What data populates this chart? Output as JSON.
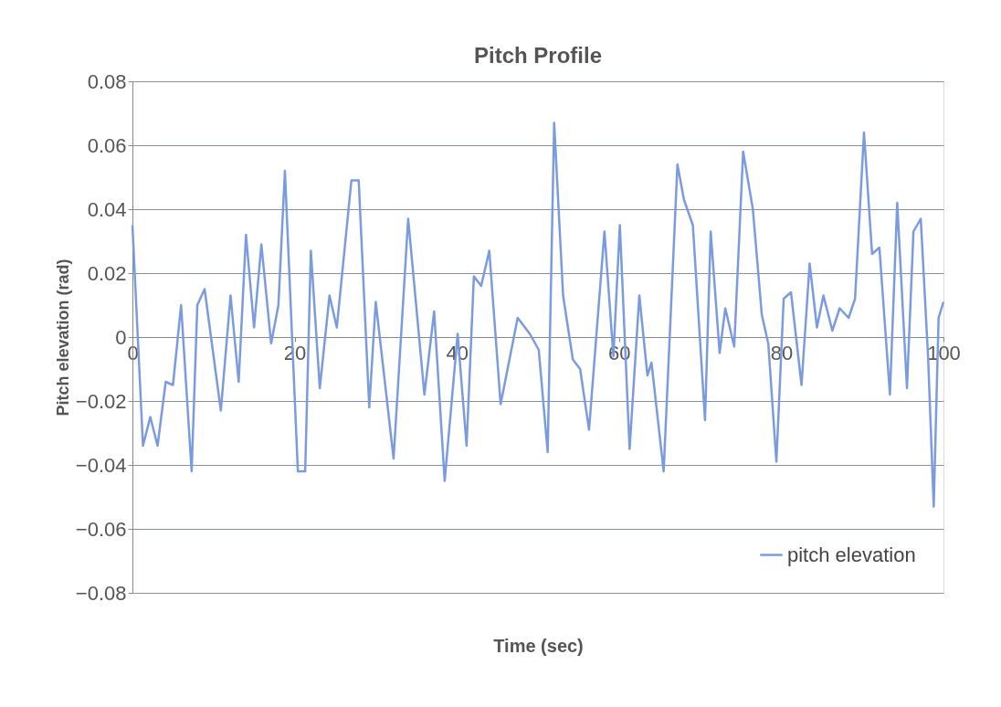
{
  "chart_data": {
    "type": "line",
    "title": "Pitch Profile",
    "xlabel": "Time (sec)",
    "ylabel": "Pitch elevation (rad)",
    "xlim": [
      0,
      100
    ],
    "xticks": [
      0,
      20,
      40,
      60,
      80,
      100
    ],
    "ylim": [
      -0.08,
      0.08
    ],
    "yticks": [
      -0.08,
      -0.06,
      -0.04,
      -0.02,
      0,
      0.02,
      0.04,
      0.06,
      0.08
    ],
    "grid": "y",
    "legend": "bottom right",
    "marker": "none",
    "line_style": "solid",
    "x": [
      0,
      1.3,
      2.2,
      3.1,
      4.1,
      5.0,
      6.0,
      7.3,
      8.0,
      8.9,
      10.9,
      12.1,
      13.1,
      14.0,
      15.0,
      15.9,
      17.1,
      18.0,
      18.8,
      20.4,
      21.3,
      22.0,
      23.1,
      24.3,
      25.2,
      27.0,
      27.9,
      29.2,
      30.0,
      32.2,
      34.0,
      36.0,
      37.2,
      38.5,
      40.1,
      41.2,
      42.1,
      43.0,
      44.0,
      45.4,
      47.5,
      49.0,
      50.1,
      51.2,
      52.0,
      53.1,
      54.3,
      55.2,
      56.3,
      58.2,
      59.3,
      60.1,
      61.3,
      62.5,
      63.5,
      64.0,
      65.5,
      67.2,
      68.0,
      69.1,
      70.6,
      71.3,
      72.4,
      73.1,
      74.2,
      75.3,
      76.5,
      77.6,
      78.4,
      79.4,
      80.3,
      81.2,
      82.5,
      83.5,
      84.4,
      85.2,
      86.3,
      87.2,
      88.3,
      89.1,
      90.2,
      91.2,
      92.1,
      93.4,
      94.3,
      95.5,
      96.3,
      97.2,
      98.1,
      98.8,
      99.4,
      100
    ],
    "series": [
      {
        "name": "pitch elevation",
        "color": "#7b9be0",
        "values": [
          0.035,
          -0.034,
          -0.025,
          -0.034,
          -0.014,
          -0.015,
          0.01,
          -0.042,
          0.01,
          0.015,
          -0.023,
          0.013,
          -0.014,
          0.032,
          0.003,
          0.029,
          -0.002,
          0.01,
          0.052,
          -0.042,
          -0.042,
          0.027,
          -0.016,
          0.013,
          0.003,
          0.049,
          0.049,
          -0.022,
          0.011,
          -0.038,
          0.037,
          -0.018,
          0.008,
          -0.045,
          0.001,
          -0.034,
          0.019,
          0.016,
          0.027,
          -0.021,
          0.006,
          0.001,
          -0.004,
          -0.036,
          0.067,
          0.013,
          -0.007,
          -0.01,
          -0.029,
          0.033,
          -0.006,
          0.035,
          -0.035,
          0.013,
          -0.012,
          -0.008,
          -0.042,
          0.054,
          0.043,
          0.035,
          -0.026,
          0.033,
          -0.005,
          0.009,
          -0.003,
          0.058,
          0.04,
          0.007,
          -0.002,
          -0.039,
          0.012,
          0.014,
          -0.015,
          0.023,
          0.003,
          0.013,
          0.002,
          0.009,
          0.006,
          0.012,
          0.064,
          0.026,
          0.028,
          -0.018,
          0.042,
          -0.016,
          0.033,
          0.037,
          -0.006,
          -0.053,
          0.006,
          0.011
        ]
      }
    ]
  }
}
